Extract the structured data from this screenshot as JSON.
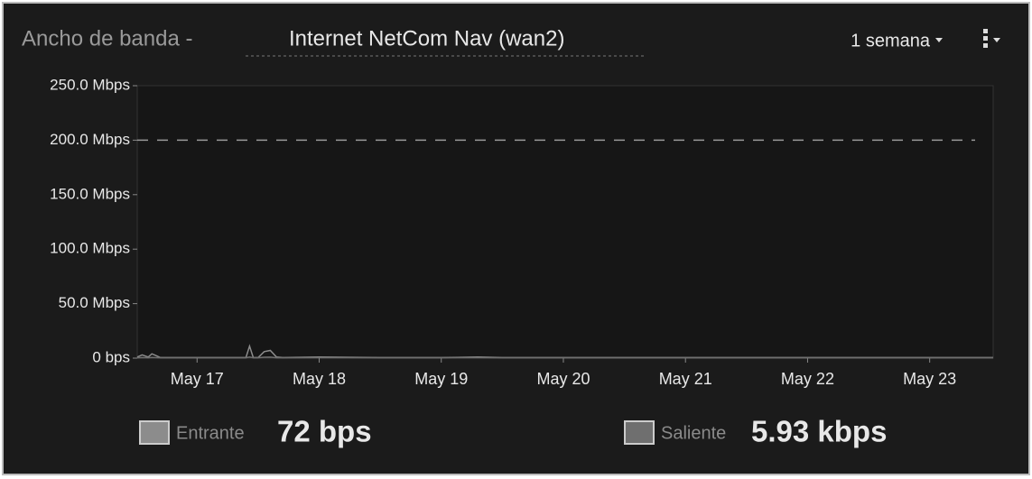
{
  "chart_data": {
    "type": "line",
    "title": "Ancho de banda -",
    "subtitle": "Internet NetCom Nav (wan2)",
    "period": "1 semana",
    "xlim": [
      16.51,
      23.52
    ],
    "xticks": [
      {
        "value": 17,
        "label": "May 17"
      },
      {
        "value": 18,
        "label": "May 18"
      },
      {
        "value": 19,
        "label": "May 19"
      },
      {
        "value": 20,
        "label": "May 20"
      },
      {
        "value": 21,
        "label": "May 21"
      },
      {
        "value": 22,
        "label": "May 22"
      },
      {
        "value": 23,
        "label": "May 23"
      }
    ],
    "ylim": [
      0,
      250
    ],
    "yticks": [
      {
        "value": 0,
        "label": "0 bps"
      },
      {
        "value": 50,
        "label": "50.0 Mbps"
      },
      {
        "value": 100,
        "label": "100.0 Mbps"
      },
      {
        "value": 150,
        "label": "150.0 Mbps"
      },
      {
        "value": 200,
        "label": "200.0 Mbps"
      },
      {
        "value": 250,
        "label": "250.0 Mbps"
      }
    ],
    "threshold": 200,
    "x": [
      16.51,
      16.55,
      16.6,
      16.63,
      16.67,
      16.7,
      17.0,
      17.2,
      17.4,
      17.43,
      17.46,
      17.5,
      17.55,
      17.6,
      17.65,
      17.7,
      18.0,
      18.5,
      19.0,
      19.3,
      19.5,
      20,
      21,
      22,
      23,
      23.52
    ],
    "series": [
      {
        "name": "Entrante",
        "color": "#8c8c8c",
        "current": "72 bps",
        "values": [
          1,
          3,
          1,
          4,
          2,
          0.5,
          0.5,
          0.5,
          0.5,
          11,
          0.5,
          0.5,
          6,
          7,
          1,
          0.5,
          1,
          0.5,
          0.5,
          1,
          0.5,
          0.5,
          0.5,
          0.5,
          0.5,
          0.5
        ]
      },
      {
        "name": "Saliente",
        "color": "#6f6f6f",
        "current": "5.93 kbps",
        "values": [
          0.3,
          0.5,
          0.3,
          0.6,
          0.4,
          0.3,
          0.3,
          0.3,
          0.3,
          1,
          0.3,
          0.3,
          0.8,
          0.9,
          0.3,
          0.3,
          0.4,
          0.3,
          0.3,
          0.4,
          0.3,
          0.3,
          0.3,
          0.3,
          0.3,
          0.3
        ]
      }
    ]
  }
}
